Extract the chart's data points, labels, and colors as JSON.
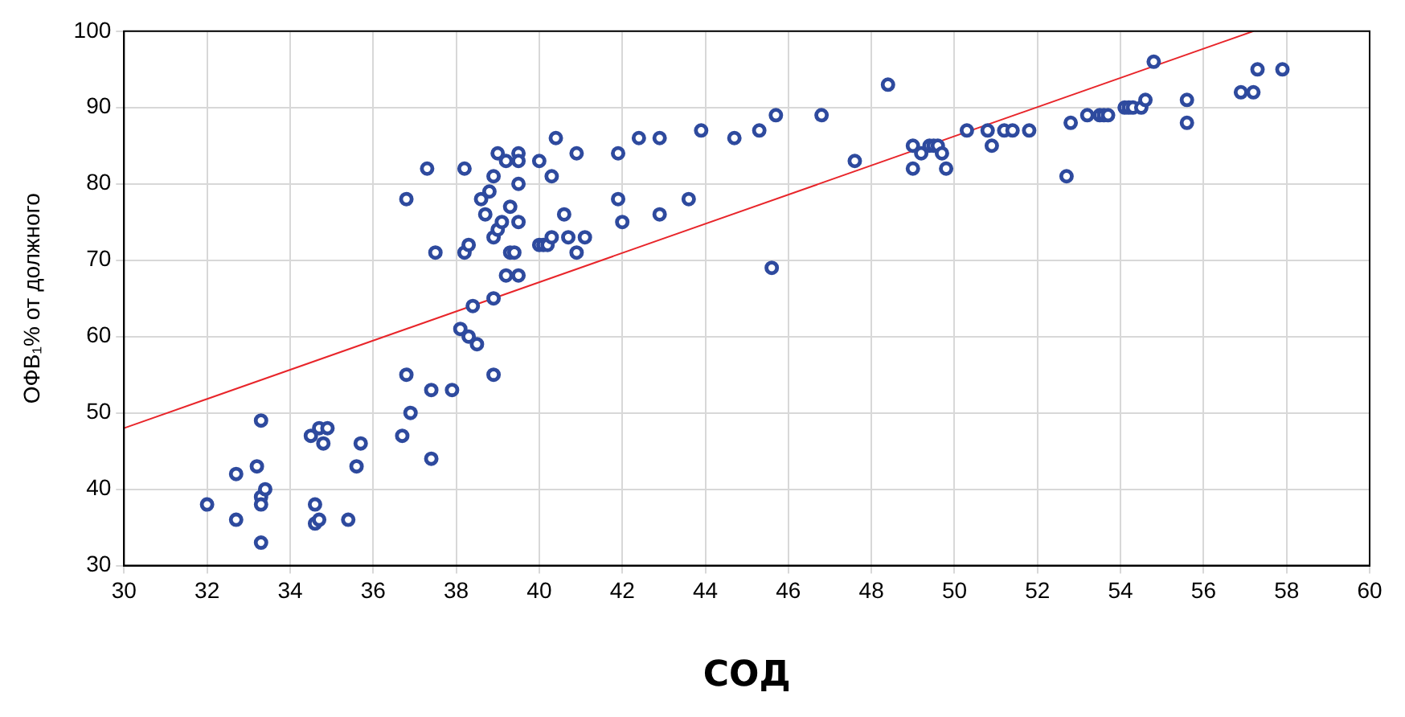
{
  "chart_data": {
    "type": "scatter",
    "xlabel": "СОД",
    "ylabel": "ОФВ₁% от должного",
    "xlim": [
      30,
      60
    ],
    "ylim": [
      30,
      100
    ],
    "xticks": [
      30,
      32,
      34,
      36,
      38,
      40,
      42,
      44,
      46,
      48,
      50,
      52,
      54,
      56,
      58,
      60
    ],
    "yticks": [
      30,
      40,
      50,
      60,
      70,
      80,
      90,
      100
    ],
    "grid": true,
    "series": [
      {
        "color": "#2e4a9e",
        "marker": "circle",
        "x": [
          32.0,
          32.7,
          32.7,
          33.2,
          33.3,
          33.3,
          33.4,
          33.3,
          33.3,
          34.5,
          34.6,
          34.6,
          34.7,
          34.7,
          34.8,
          34.9,
          35.4,
          35.6,
          35.7,
          36.7,
          36.8,
          36.9,
          37.4,
          37.4,
          37.9,
          38.1,
          38.3,
          38.5,
          38.4,
          38.9,
          38.9,
          36.8,
          37.3,
          37.5,
          38.2,
          38.2,
          38.3,
          38.6,
          38.7,
          38.8,
          38.9,
          39.0,
          38.9,
          39.0,
          39.1,
          39.2,
          39.3,
          39.2,
          39.3,
          39.4,
          39.5,
          39.5,
          39.5,
          39.5,
          39.5,
          40.0,
          40.1,
          40.2,
          40.0,
          40.3,
          40.4,
          40.3,
          40.6,
          40.7,
          40.9,
          40.9,
          41.1,
          41.9,
          41.9,
          42.0,
          42.4,
          42.9,
          42.9,
          43.6,
          43.9,
          44.7,
          45.3,
          45.6,
          45.7,
          46.8,
          47.6,
          48.4,
          49.0,
          49.0,
          49.2,
          49.4,
          49.5,
          49.6,
          49.7,
          49.8,
          50.3,
          50.8,
          50.9,
          51.2,
          51.4,
          51.8,
          52.7,
          52.8,
          53.2,
          53.5,
          53.6,
          53.7,
          54.1,
          54.2,
          54.3,
          54.5,
          54.6,
          54.8,
          55.6,
          55.6,
          56.9,
          57.2,
          57.3,
          57.9
        ],
        "values": [
          38,
          42,
          36,
          43,
          49,
          39,
          40,
          38,
          33,
          47,
          38,
          35.5,
          36,
          48,
          46,
          48,
          36,
          43,
          46,
          47,
          55,
          50,
          44,
          53,
          53,
          61,
          60,
          59,
          64,
          65,
          55,
          78,
          82,
          71,
          82,
          71,
          72,
          78,
          76,
          79,
          81,
          84,
          73,
          74,
          75,
          68,
          77,
          83,
          71,
          71,
          84,
          83,
          80,
          75,
          68,
          72,
          72,
          72,
          83,
          81,
          86,
          73,
          76,
          73,
          71,
          84,
          73,
          84,
          78,
          75,
          86,
          86,
          76,
          78,
          87,
          86,
          87,
          69,
          89,
          89,
          83,
          93,
          85,
          82,
          84,
          85,
          85,
          85,
          84,
          82,
          87,
          87,
          85,
          87,
          87,
          87,
          81,
          88,
          89,
          89,
          89,
          89,
          90,
          90,
          90,
          90,
          91,
          96,
          91,
          88,
          92,
          92,
          95,
          95
        ]
      },
      {
        "type": "line",
        "marker": "none",
        "color": "#e8252a",
        "x": [
          30,
          57.2
        ],
        "values": [
          48,
          100
        ]
      }
    ]
  }
}
